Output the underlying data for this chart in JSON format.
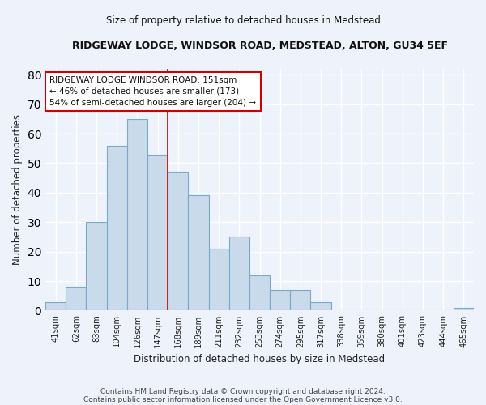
{
  "title": "RIDGEWAY LODGE, WINDSOR ROAD, MEDSTEAD, ALTON, GU34 5EF",
  "subtitle": "Size of property relative to detached houses in Medstead",
  "xlabel": "Distribution of detached houses by size in Medstead",
  "ylabel": "Number of detached properties",
  "categories": [
    "41sqm",
    "62sqm",
    "83sqm",
    "104sqm",
    "126sqm",
    "147sqm",
    "168sqm",
    "189sqm",
    "211sqm",
    "232sqm",
    "253sqm",
    "274sqm",
    "295sqm",
    "317sqm",
    "338sqm",
    "359sqm",
    "380sqm",
    "401sqm",
    "423sqm",
    "444sqm",
    "465sqm"
  ],
  "values": [
    3,
    8,
    30,
    56,
    65,
    53,
    47,
    39,
    21,
    25,
    12,
    7,
    7,
    3,
    0,
    0,
    0,
    0,
    0,
    0,
    1
  ],
  "bar_color": "#c9daea",
  "bar_edge_color": "#7aaaca",
  "background_color": "#eef2fb",
  "grid_color": "#ffffff",
  "red_line_x": 5.5,
  "annotation_text": "RIDGEWAY LODGE WINDSOR ROAD: 151sqm\n← 46% of detached houses are smaller (173)\n54% of semi-detached houses are larger (204) →",
  "annotation_box_color": "#ffffff",
  "annotation_box_edge_color": "#cc0000",
  "ylim": [
    0,
    82
  ],
  "yticks": [
    0,
    10,
    20,
    30,
    40,
    50,
    60,
    70,
    80
  ],
  "footer1": "Contains HM Land Registry data © Crown copyright and database right 2024.",
  "footer2": "Contains public sector information licensed under the Open Government Licence v3.0."
}
